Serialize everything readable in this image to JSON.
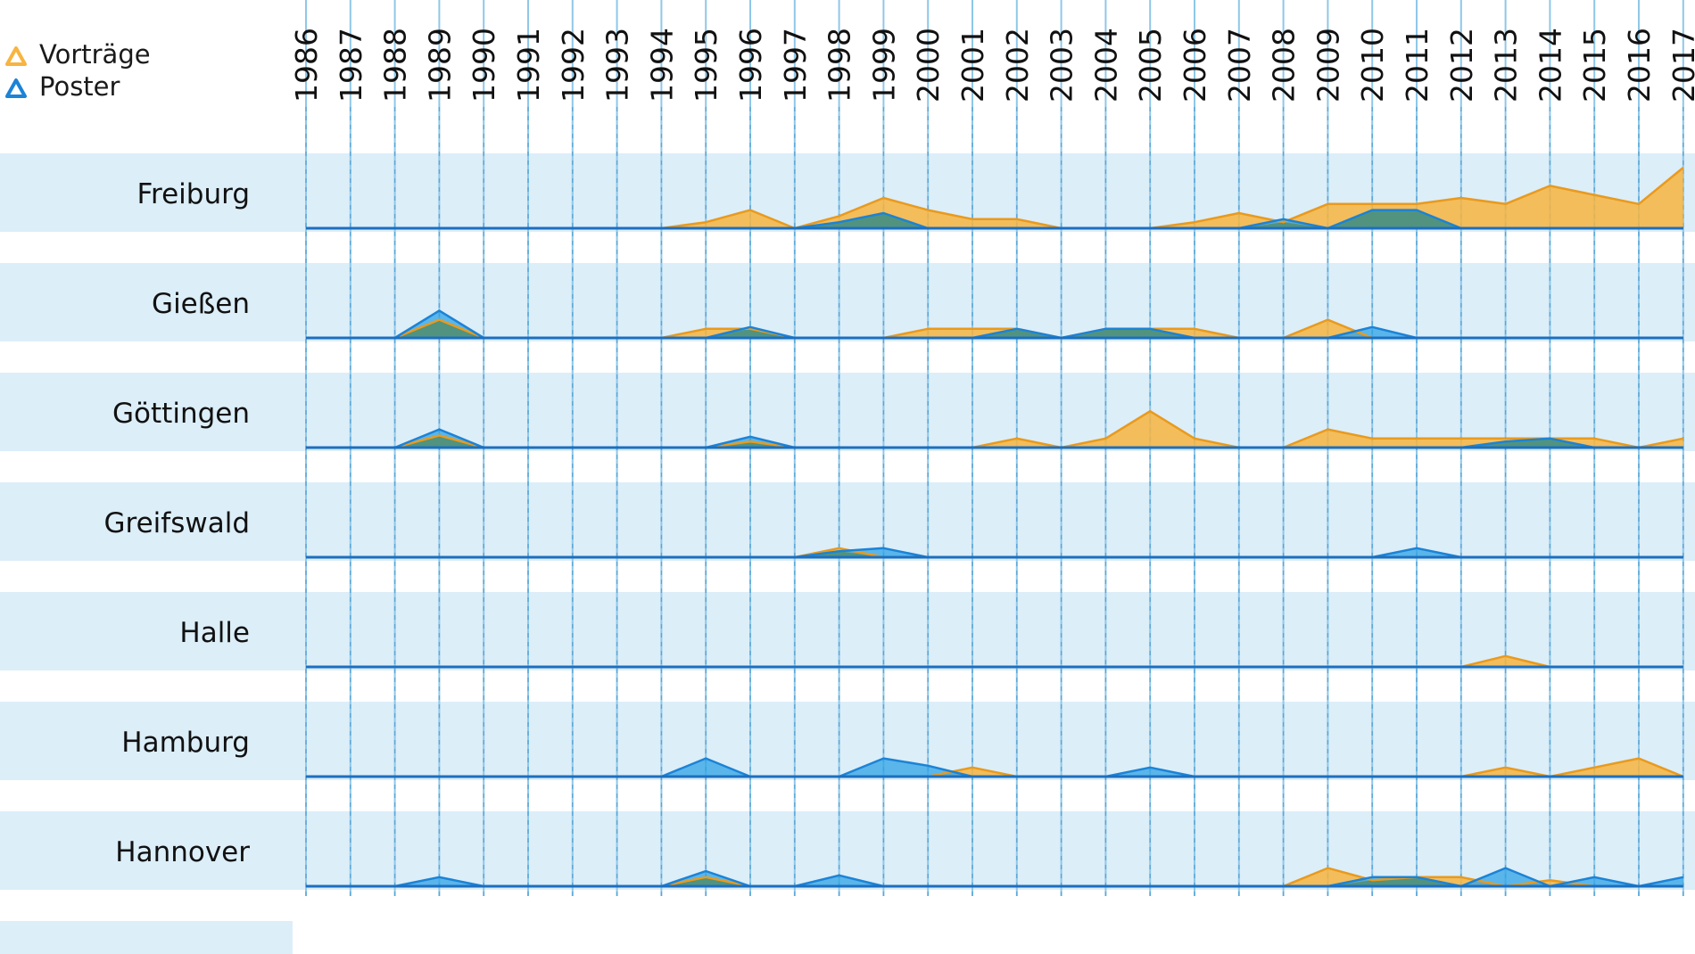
{
  "chart_data": {
    "type": "area",
    "legend": {
      "position": "top-left",
      "items": [
        {
          "label": "Vorträge",
          "color": "#F7B440",
          "marker": "triangle"
        },
        {
          "label": "Poster",
          "color": "#1C83D6",
          "marker": "triangle"
        }
      ]
    },
    "x": [
      1986,
      1987,
      1988,
      1989,
      1990,
      1991,
      1992,
      1993,
      1994,
      1995,
      1996,
      1997,
      1998,
      1999,
      2000,
      2001,
      2002,
      2003,
      2004,
      2005,
      2006,
      2007,
      2008,
      2009,
      2010,
      2011,
      2012,
      2013,
      2014,
      2015,
      2016,
      2017
    ],
    "year_labels": [
      "1986",
      "1987",
      "1988",
      "1989",
      "1990",
      "1991",
      "1992",
      "1993",
      "1994",
      "1995",
      "1996",
      "1997",
      "1998",
      "1999",
      "2000",
      "2001",
      "2002",
      "2003",
      "2004",
      "2005",
      "2006",
      "2007",
      "2008",
      "2009",
      "2010",
      "2011",
      "2012",
      "2013",
      "2014",
      "2015",
      "2016",
      "2017"
    ],
    "ylim": [
      0,
      12
    ],
    "grid": true,
    "colors": {
      "vortraege": "#F7B440",
      "poster": "#1C83D6",
      "overlap": "#4F8F72",
      "band": "#DCEEF8",
      "axis": "#1C6FC0",
      "grid": "#8FC7E8"
    },
    "panels": [
      {
        "city": "Freiburg",
        "series": [
          {
            "name": "Vorträge",
            "values": [
              0,
              0,
              0,
              0,
              0,
              0,
              0,
              0,
              0,
              1,
              3,
              0,
              2,
              5,
              3,
              1.5,
              1.5,
              0,
              0,
              0,
              1,
              2.5,
              1,
              4,
              4,
              4,
              5,
              4,
              7,
              5.5,
              4,
              10
            ]
          },
          {
            "name": "Poster",
            "values": [
              0,
              0,
              0,
              0,
              0,
              0,
              0,
              0,
              0,
              0,
              0,
              0,
              1,
              2.5,
              0,
              0,
              0,
              0,
              0,
              0,
              0,
              0,
              1.5,
              0,
              3,
              3,
              0,
              0,
              0,
              0,
              0,
              0
            ]
          }
        ]
      },
      {
        "city": "Gießen",
        "series": [
          {
            "name": "Vorträge",
            "values": [
              0,
              0,
              0,
              3,
              0,
              0,
              0,
              0,
              0,
              1.5,
              1.5,
              0,
              0,
              0,
              1.5,
              1.5,
              1.5,
              0,
              1.5,
              1.5,
              1.5,
              0,
              0,
              3,
              0,
              0,
              0,
              0,
              0,
              0,
              0,
              0
            ]
          },
          {
            "name": "Poster",
            "values": [
              0,
              0,
              0,
              4.5,
              0,
              0,
              0,
              0,
              0,
              0,
              1.8,
              0,
              0,
              0,
              0,
              0,
              1.5,
              0,
              1.5,
              1.5,
              0,
              0,
              0,
              0,
              1.8,
              0,
              0,
              0,
              0,
              0,
              0,
              0
            ]
          }
        ]
      },
      {
        "city": "Göttingen",
        "series": [
          {
            "name": "Vorträge",
            "values": [
              0,
              0,
              0,
              2,
              0,
              0,
              0,
              0,
              0,
              0,
              1,
              0,
              0,
              0,
              0,
              0,
              1.5,
              0,
              1.5,
              6,
              1.5,
              0,
              0,
              3,
              1.5,
              1.5,
              1.5,
              1.5,
              1.5,
              1.5,
              0,
              1.5
            ]
          },
          {
            "name": "Poster",
            "values": [
              0,
              0,
              0,
              3,
              0,
              0,
              0,
              0,
              0,
              0,
              1.8,
              0,
              0,
              0,
              0,
              0,
              0,
              0,
              0,
              0,
              0,
              0,
              0,
              0,
              0,
              0,
              0,
              1,
              1.5,
              0,
              0,
              0
            ]
          }
        ]
      },
      {
        "city": "Greifswald",
        "series": [
          {
            "name": "Vorträge",
            "values": [
              0,
              0,
              0,
              0,
              0,
              0,
              0,
              0,
              0,
              0,
              0,
              0,
              1.5,
              0,
              0,
              0,
              0,
              0,
              0,
              0,
              0,
              0,
              0,
              0,
              0,
              0,
              0,
              0,
              0,
              0,
              0,
              0
            ]
          },
          {
            "name": "Poster",
            "values": [
              0,
              0,
              0,
              0,
              0,
              0,
              0,
              0,
              0,
              0,
              0,
              0,
              1,
              1.5,
              0,
              0,
              0,
              0,
              0,
              0,
              0,
              0,
              0,
              0,
              0,
              1.5,
              0,
              0,
              0,
              0,
              0,
              0
            ]
          }
        ]
      },
      {
        "city": "Halle",
        "series": [
          {
            "name": "Vorträge",
            "values": [
              0,
              0,
              0,
              0,
              0,
              0,
              0,
              0,
              0,
              0,
              0,
              0,
              0,
              0,
              0,
              0,
              0,
              0,
              0,
              0,
              0,
              0,
              0,
              0,
              0,
              0,
              0,
              1.8,
              0,
              0,
              0,
              0
            ]
          },
          {
            "name": "Poster",
            "values": [
              0,
              0,
              0,
              0,
              0,
              0,
              0,
              0,
              0,
              0,
              0,
              0,
              0,
              0,
              0,
              0,
              0,
              0,
              0,
              0,
              0,
              0,
              0,
              0,
              0,
              0,
              0,
              0,
              0,
              0,
              0,
              0
            ]
          }
        ]
      },
      {
        "city": "Hamburg",
        "series": [
          {
            "name": "Vorträge",
            "values": [
              0,
              0,
              0,
              0,
              0,
              0,
              0,
              0,
              0,
              0,
              0,
              0,
              0,
              0,
              0,
              1.5,
              0,
              0,
              0,
              0,
              0,
              0,
              0,
              0,
              0,
              0,
              0,
              1.5,
              0,
              1.5,
              3,
              0
            ]
          },
          {
            "name": "Poster",
            "values": [
              0,
              0,
              0,
              0,
              0,
              0,
              0,
              0,
              0,
              3,
              0,
              0,
              0,
              3,
              1.8,
              0,
              0,
              0,
              0,
              1.5,
              0,
              0,
              0,
              0,
              0,
              0,
              0,
              0,
              0,
              0,
              0,
              0
            ]
          }
        ]
      },
      {
        "city": "Hannover",
        "series": [
          {
            "name": "Vorträge",
            "values": [
              0,
              0,
              0,
              0,
              0,
              0,
              0,
              0,
              0,
              1.5,
              0,
              0,
              0,
              0,
              0,
              0,
              0,
              0,
              0,
              0,
              0,
              0,
              0,
              3,
              1,
              1.5,
              1.5,
              0,
              1,
              0,
              0,
              0
            ]
          },
          {
            "name": "Poster",
            "values": [
              0,
              0,
              0,
              1.5,
              0,
              0,
              0,
              0,
              0,
              2.5,
              0,
              0,
              1.8,
              0,
              0,
              0,
              0,
              0,
              0,
              0,
              0,
              0,
              0,
              0,
              1.5,
              1.5,
              0,
              3,
              0,
              1.5,
              0,
              1.5
            ]
          }
        ]
      }
    ]
  }
}
